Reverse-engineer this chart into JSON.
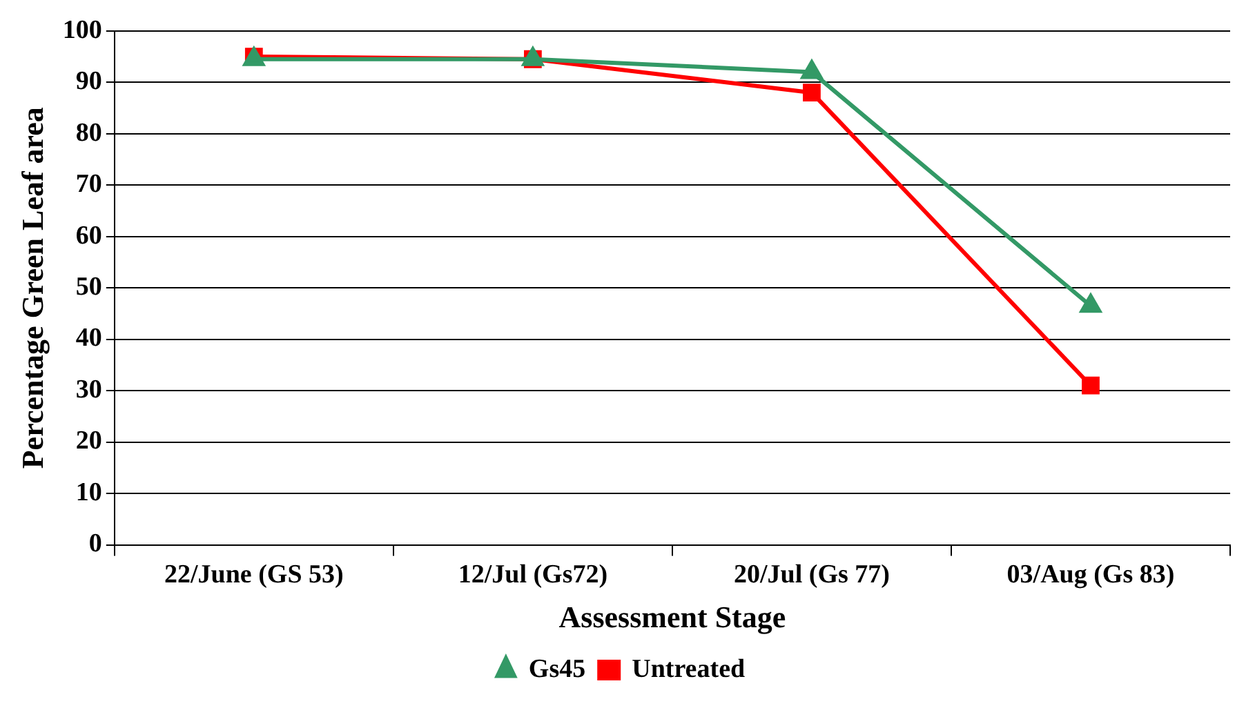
{
  "chart_data": {
    "type": "line",
    "xlabel": "Assessment Stage",
    "ylabel": "Percentage Green Leaf area",
    "categories": [
      "22/June (GS 53)",
      "12/Jul (Gs72)",
      "20/Jul (Gs 77)",
      "03/Aug (Gs 83)"
    ],
    "series": [
      {
        "name": "Untreated",
        "color": "#ff0000",
        "marker": "square",
        "values": [
          95,
          94.5,
          88,
          31
        ]
      },
      {
        "name": "Gs45",
        "color": "#339966",
        "marker": "triangle",
        "values": [
          94.5,
          94.5,
          92,
          46.5
        ]
      }
    ],
    "ylim": [
      0,
      100
    ],
    "yticks": [
      0,
      10,
      20,
      30,
      40,
      50,
      60,
      70,
      80,
      90,
      100
    ],
    "grid": "y",
    "legend": "bottom"
  }
}
